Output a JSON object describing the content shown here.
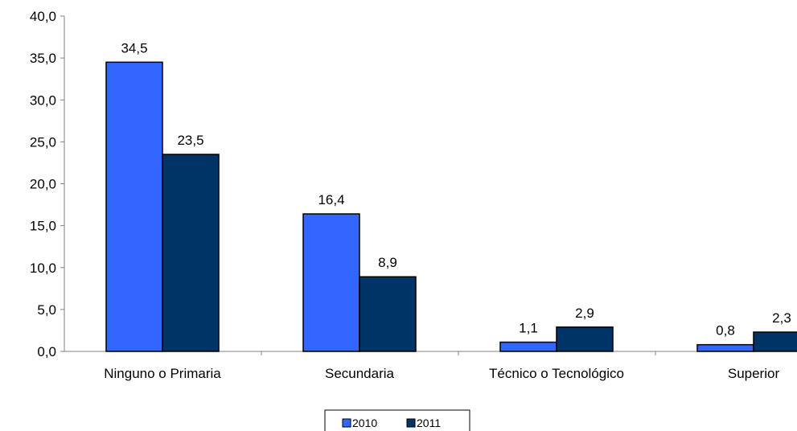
{
  "chart_data": {
    "type": "bar",
    "categories": [
      "Ninguno o Primaria",
      "Secundaria",
      "Técnico o Tecnológico",
      "Superior"
    ],
    "series": [
      {
        "name": "2010",
        "values": [
          34.5,
          16.4,
          1.1,
          0.8
        ],
        "labels": [
          "34,5",
          "16,4",
          "1,1",
          "0,8"
        ],
        "color": "#3366FF"
      },
      {
        "name": "2011",
        "values": [
          23.5,
          8.9,
          2.9,
          2.3
        ],
        "labels": [
          "23,5",
          "8,9",
          "2,9",
          "2,3"
        ],
        "color": "#003366"
      }
    ],
    "yticks": [
      "0,0",
      "5,0",
      "10,0",
      "15,0",
      "20,0",
      "25,0",
      "30,0",
      "35,0",
      "40,0"
    ],
    "ylim": [
      0,
      40
    ],
    "title": "",
    "xlabel": "",
    "ylabel": "",
    "grid": false,
    "legend_position": "bottom"
  }
}
